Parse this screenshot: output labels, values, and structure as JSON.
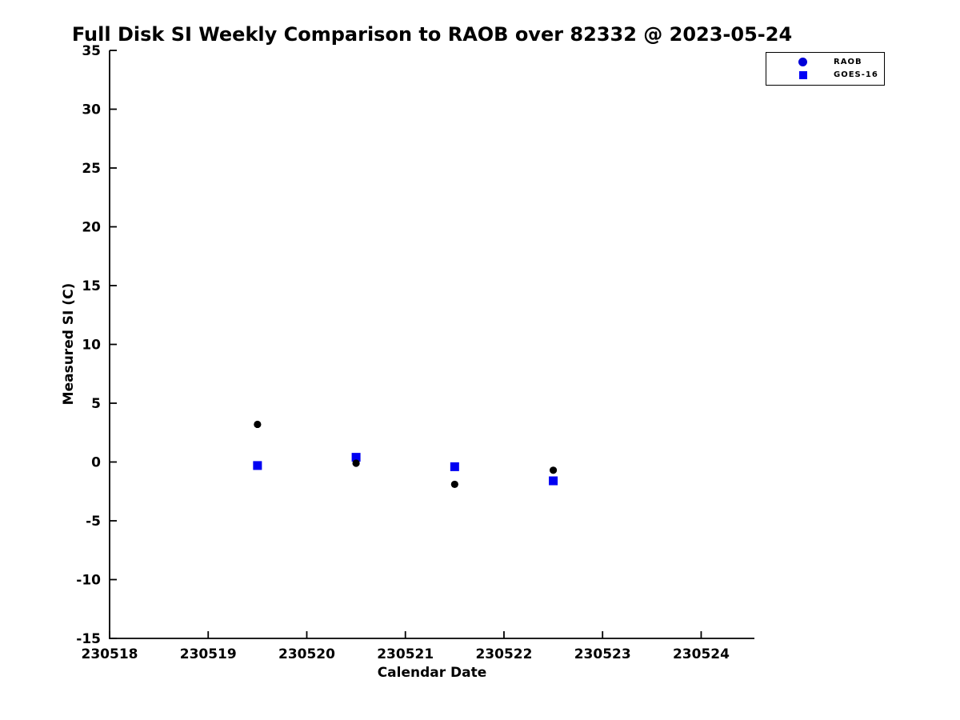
{
  "chart_data": {
    "type": "scatter",
    "title": "Full Disk SI Weekly Comparison to RAOB over 82332 @ 2023-05-24",
    "xlabel": "Calendar Date",
    "ylabel": "Measured SI (C)",
    "xlim": [
      230518,
      230524.54
    ],
    "ylim": [
      -15,
      35
    ],
    "grid": false,
    "x_ticks": {
      "values": [
        230518,
        230519,
        230520,
        230521,
        230522,
        230523,
        230524
      ],
      "labels": [
        "230518",
        "230519",
        "230520",
        "230521",
        "230522",
        "230523",
        "230524"
      ]
    },
    "y_ticks": {
      "values": [
        -15,
        -10,
        -5,
        0,
        5,
        10,
        15,
        20,
        25,
        30,
        35
      ],
      "labels": [
        "-15",
        "-10",
        "-5",
        "0",
        "5",
        "10",
        "15",
        "20",
        "25",
        "30",
        "35"
      ]
    },
    "series": [
      {
        "name": "GOES-16",
        "marker": "square",
        "color": "#0000f2",
        "x": [
          230519.5,
          230520.5,
          230521.5,
          230522.5
        ],
        "y": [
          -0.3,
          0.4,
          -0.4,
          -1.6
        ]
      },
      {
        "name": "RAOB",
        "marker": "circle",
        "color": "#000000",
        "x": [
          230519.5,
          230520.5,
          230521.5,
          230522.5
        ],
        "y": [
          3.2,
          -0.1,
          -1.9,
          -0.7
        ]
      }
    ],
    "legend": {
      "position": "top-right-outside",
      "entries": [
        {
          "label": "RAOB",
          "marker": "circle",
          "color": "#0000d8"
        },
        {
          "label": "GOES-16",
          "marker": "square",
          "color": "#0000f5"
        }
      ]
    },
    "axis_color": "#000000"
  }
}
